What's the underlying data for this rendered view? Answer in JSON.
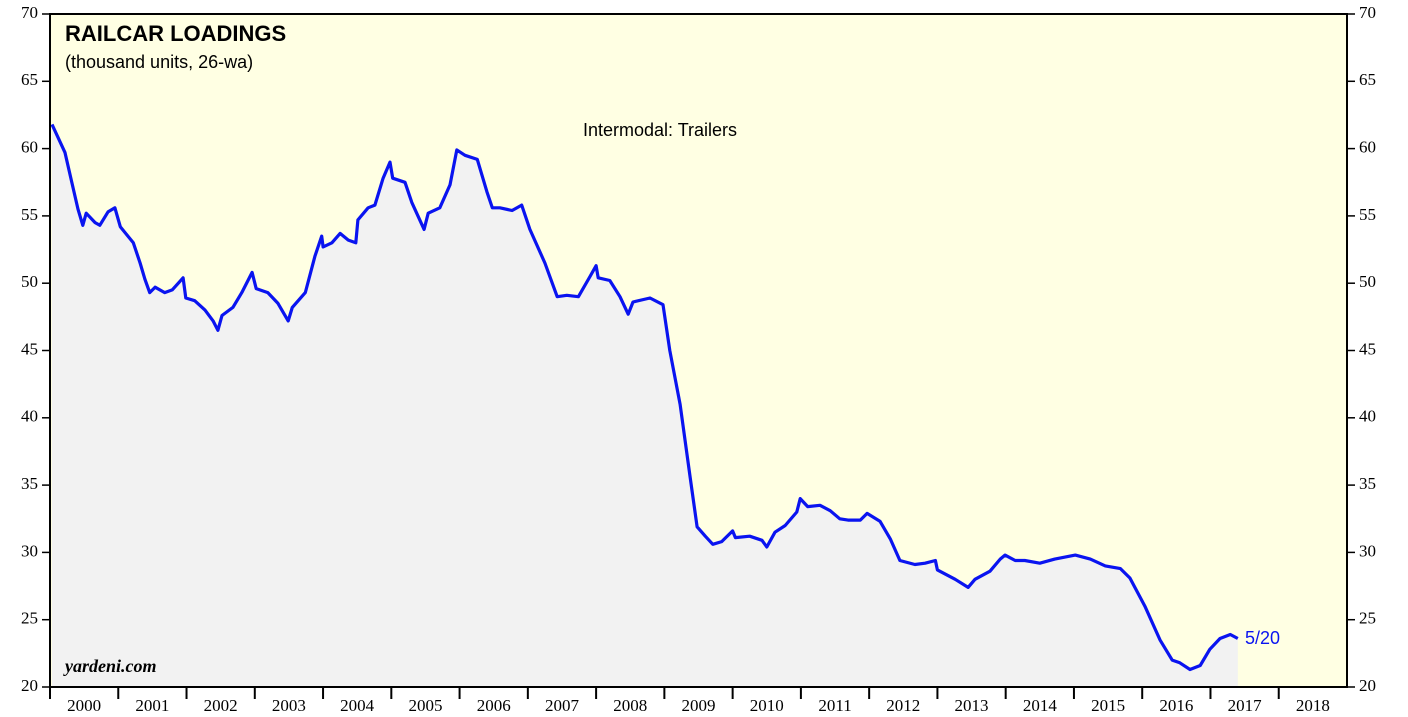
{
  "chart_data": {
    "type": "line",
    "title": "RAILCAR LOADINGS",
    "subtitle": "(thousand units, 26-wa)",
    "annotations": [
      "Intermodal: Trailers",
      "5/20",
      "yardeni.com"
    ],
    "x": [
      2000.03,
      2000.22,
      2000.32,
      2000.41,
      2000.48,
      2000.53,
      2000.66,
      2000.73,
      2000.85,
      2000.95,
      2001.03,
      2001.22,
      2001.32,
      2001.39,
      2001.46,
      2001.54,
      2001.68,
      2001.79,
      2001.88,
      2001.95,
      2001.99,
      2002.12,
      2002.27,
      2002.39,
      2002.46,
      2002.52,
      2002.68,
      2002.81,
      2002.96,
      2003.02,
      2003.19,
      2003.34,
      2003.49,
      2003.55,
      2003.74,
      2003.88,
      2003.98,
      2004.0,
      2004.13,
      2004.25,
      2004.37,
      2004.48,
      2004.51,
      2004.66,
      2004.76,
      2004.88,
      2004.98,
      2005.02,
      2005.2,
      2005.3,
      2005.48,
      2005.54,
      2005.71,
      2005.86,
      2005.96,
      2006.08,
      2006.26,
      2006.4,
      2006.48,
      2006.59,
      2006.77,
      2006.91,
      2007.03,
      2007.25,
      2007.43,
      2007.57,
      2007.74,
      2007.91,
      2008.0,
      2008.03,
      2008.2,
      2008.35,
      2008.47,
      2008.54,
      2008.79,
      2008.98,
      2009.08,
      2009.23,
      2009.38,
      2009.48,
      2009.6,
      2009.71,
      2009.84,
      2010.0,
      2010.04,
      2010.25,
      2010.43,
      2010.5,
      2010.62,
      2010.77,
      2010.94,
      2010.99,
      2011.1,
      2011.28,
      2011.43,
      2011.57,
      2011.69,
      2011.87,
      2011.97,
      2012.16,
      2012.31,
      2012.45,
      2012.67,
      2012.82,
      2012.97,
      2013.0,
      2013.26,
      2013.45,
      2013.55,
      2013.77,
      2013.92,
      2013.99,
      2014.14,
      2014.28,
      2014.5,
      2014.72,
      2015.02,
      2015.24,
      2015.46,
      2015.68,
      2015.82,
      2016.04,
      2016.26,
      2016.44,
      2016.55,
      2016.7,
      2016.85,
      2016.99,
      2017.14,
      2017.29,
      2017.4
    ],
    "series": [
      {
        "name": "Intermodal: Trailers",
        "color": "#0a14f0",
        "values": [
          61.8,
          59.7,
          57.5,
          55.5,
          54.3,
          55.2,
          54.5,
          54.3,
          55.3,
          55.6,
          54.2,
          53.0,
          51.5,
          50.3,
          49.3,
          49.7,
          49.3,
          49.5,
          50.0,
          50.4,
          48.9,
          48.7,
          48.0,
          47.2,
          46.5,
          47.6,
          48.2,
          49.3,
          50.8,
          49.6,
          49.3,
          48.5,
          47.2,
          48.2,
          49.3,
          52.0,
          53.5,
          52.7,
          53.0,
          53.7,
          53.2,
          53.0,
          54.7,
          55.6,
          55.8,
          57.8,
          59.0,
          57.8,
          57.5,
          56.0,
          54.0,
          55.2,
          55.6,
          57.3,
          59.9,
          59.5,
          59.2,
          56.8,
          55.6,
          55.6,
          55.4,
          55.8,
          54.0,
          51.5,
          49.0,
          49.1,
          49.0,
          50.5,
          51.3,
          50.4,
          50.2,
          49.0,
          47.7,
          48.6,
          48.9,
          48.4,
          45.0,
          41.0,
          35.5,
          31.9,
          31.2,
          30.6,
          30.8,
          31.6,
          31.1,
          31.2,
          30.9,
          30.4,
          31.5,
          32.0,
          33.0,
          34.0,
          33.4,
          33.5,
          33.1,
          32.5,
          32.4,
          32.4,
          32.9,
          32.3,
          31.0,
          29.4,
          29.1,
          29.2,
          29.4,
          28.7,
          28.0,
          27.4,
          28.0,
          28.6,
          29.5,
          29.8,
          29.4,
          29.4,
          29.2,
          29.5,
          29.8,
          29.5,
          29.0,
          28.8,
          28.1,
          26.0,
          23.5,
          22.0,
          21.8,
          21.3,
          21.6,
          22.8,
          23.6,
          23.9,
          23.6
        ]
      }
    ],
    "xlim": [
      2000,
      2019
    ],
    "xticks": [
      2000,
      2001,
      2002,
      2003,
      2004,
      2005,
      2006,
      2007,
      2008,
      2009,
      2010,
      2011,
      2012,
      2013,
      2014,
      2015,
      2016,
      2017,
      2018
    ],
    "ylim": [
      20,
      70
    ],
    "yticks": [
      20,
      25,
      30,
      35,
      40,
      45,
      50,
      55,
      60,
      65,
      70
    ],
    "background": "#ffffe3",
    "area_color": "#f2f2f2"
  }
}
